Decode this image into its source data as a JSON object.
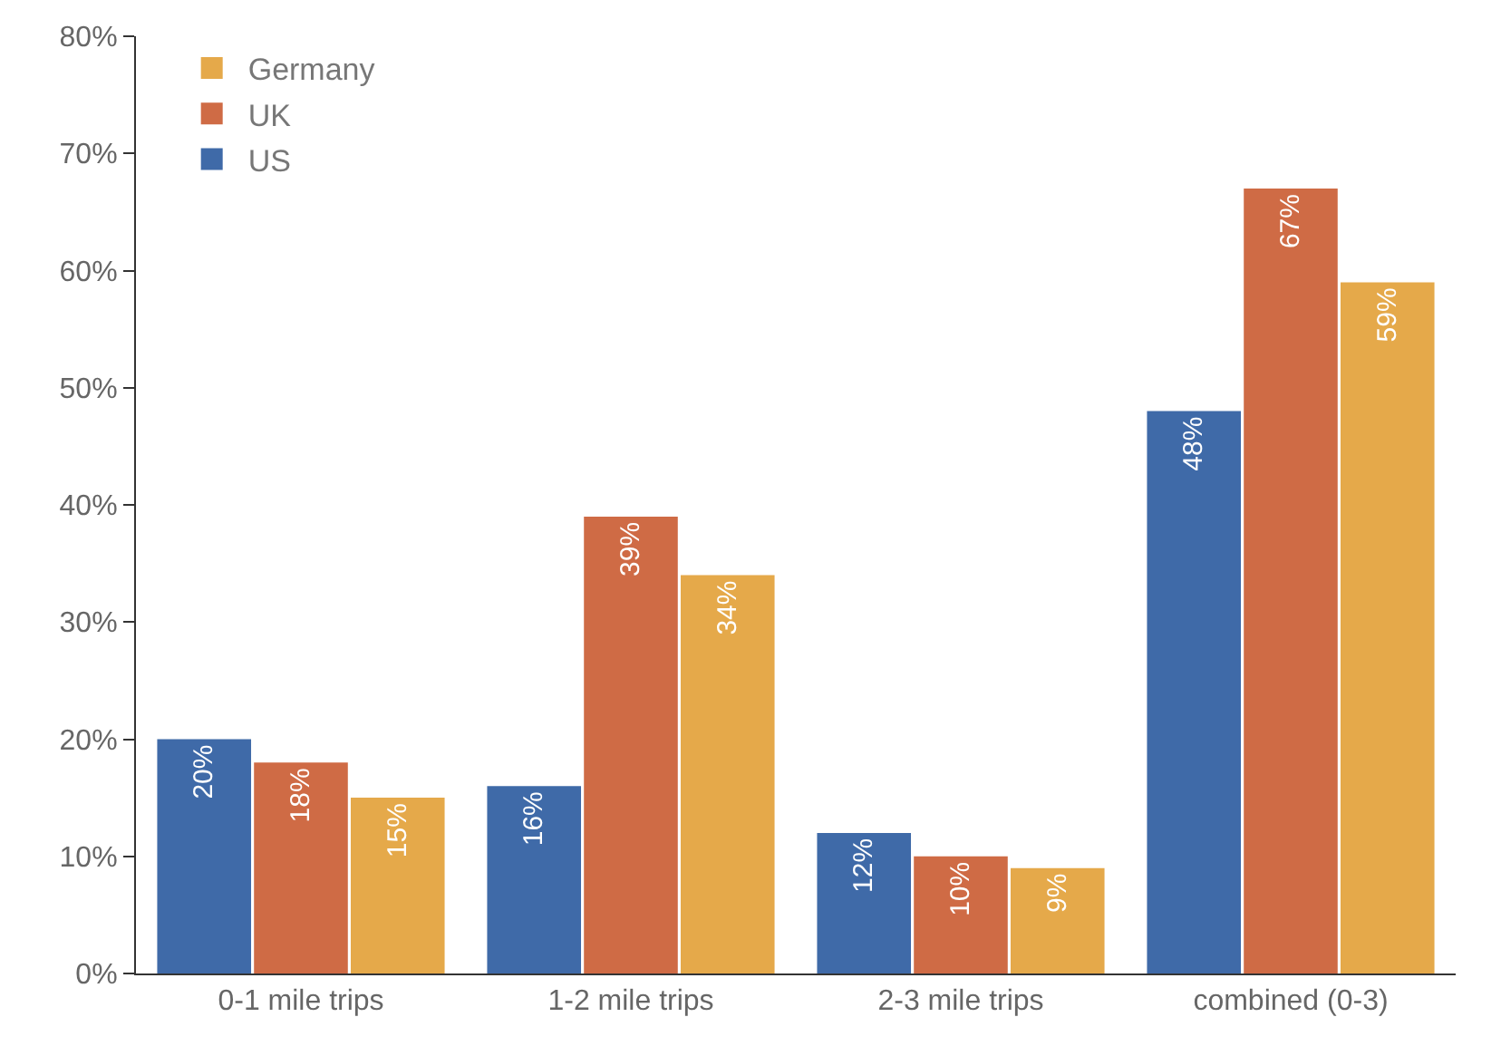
{
  "chart_data": {
    "type": "bar",
    "categories": [
      "0-1 mile trips",
      "1-2 mile trips",
      "2-3 mile trips",
      "combined (0-3)"
    ],
    "series": [
      {
        "name": "US",
        "color": "#3f6aa8",
        "values": [
          20,
          16,
          12,
          48
        ],
        "value_labels": [
          "20%",
          "16%",
          "12%",
          "48%"
        ]
      },
      {
        "name": "UK",
        "color": "#cf6b45",
        "values": [
          18,
          39,
          10,
          67
        ],
        "value_labels": [
          "18%",
          "39%",
          "10%",
          "67%"
        ]
      },
      {
        "name": "Germany",
        "color": "#e5a94a",
        "values": [
          15,
          34,
          9,
          59
        ],
        "value_labels": [
          "15%",
          "34%",
          "9%",
          "59%"
        ]
      }
    ],
    "ylim": [
      0,
      80
    ],
    "yticks": [
      {
        "value": 0,
        "label": "0%"
      },
      {
        "value": 10,
        "label": "10%"
      },
      {
        "value": 20,
        "label": "20%"
      },
      {
        "value": 30,
        "label": "30%"
      },
      {
        "value": 40,
        "label": "40%"
      },
      {
        "value": 50,
        "label": "50%"
      },
      {
        "value": 60,
        "label": "60%"
      },
      {
        "value": 70,
        "label": "70%"
      },
      {
        "value": 80,
        "label": "80%"
      }
    ],
    "legend": "top left"
  }
}
